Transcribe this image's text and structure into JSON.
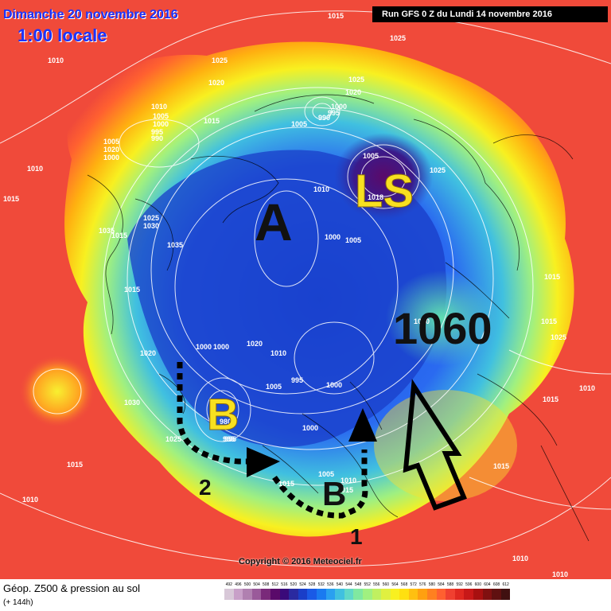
{
  "header": {
    "date": "Dimanche 20 novembre 2016",
    "time": "1:00 locale",
    "run": "Run GFS 0 Z du Lundi 14 novembre 2016"
  },
  "footer": {
    "title": "Géop. Z500 & pression au sol",
    "subtitle": "(+ 144h)",
    "copyright": "Copyright © 2016 Meteociel.fr"
  },
  "scale": {
    "values": [
      "492",
      "496",
      "500",
      "504",
      "508",
      "512",
      "516",
      "520",
      "524",
      "528",
      "532",
      "536",
      "540",
      "544",
      "548",
      "552",
      "556",
      "560",
      "564",
      "568",
      "572",
      "576",
      "580",
      "584",
      "588",
      "592",
      "596",
      "600",
      "604",
      "608",
      "612"
    ],
    "colors": [
      "#d8c8d8",
      "#c8a0c8",
      "#b080b0",
      "#9a5a9a",
      "#7a2a7a",
      "#5a0a6a",
      "#3a0a7a",
      "#2a2aa0",
      "#1a3ec8",
      "#1a5ae6",
      "#1a7af0",
      "#2aa0f0",
      "#40c0e0",
      "#60d8c8",
      "#80e8a0",
      "#a0f080",
      "#c0f060",
      "#e0f040",
      "#f8f020",
      "#ffe010",
      "#ffc010",
      "#ffa010",
      "#ff8020",
      "#ff6030",
      "#f04030",
      "#e02820",
      "#c81818",
      "#a81010",
      "#801010",
      "#601010",
      "#401010"
    ]
  },
  "annotations": {
    "letter_a": "A",
    "letter_ls": "LS",
    "letter_b_left": "B",
    "letter_b_bottom": "B",
    "value_1060": "1060",
    "num_2": "2",
    "num_1": "1"
  },
  "isobar_labels": [
    "1015",
    "1025",
    "1010",
    "1025",
    "1020",
    "1025",
    "1020",
    "1010",
    "1005",
    "1000",
    "995",
    "990",
    "1015",
    "1005",
    "990",
    "995",
    "1000",
    "1005",
    "1025",
    "1010",
    "1018",
    "1035",
    "1025",
    "1030",
    "1035",
    "1015",
    "1010",
    "1000",
    "1005",
    "1015",
    "1000",
    "1000",
    "1020",
    "1010",
    "1005",
    "995",
    "1000",
    "1000",
    "1020",
    "1005",
    "995",
    "1030",
    "1025",
    "1015",
    "1015",
    "1010",
    "1060",
    "1015",
    "1025",
    "1010",
    "1015",
    "1015",
    "1010",
    "1010",
    "1010",
    "1015",
    "1005",
    "1020",
    "1000",
    "1015",
    "980",
    "995",
    "1015"
  ]
}
